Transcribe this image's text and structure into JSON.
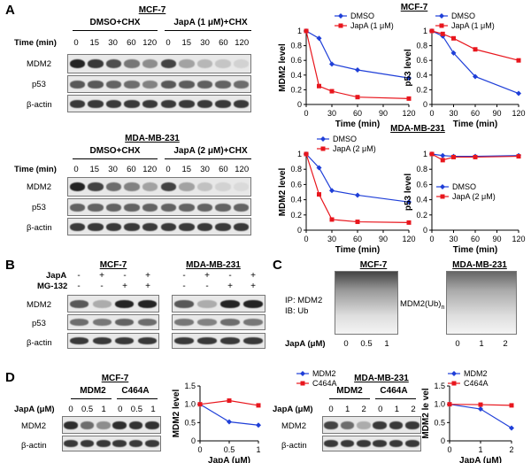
{
  "panel_letters": {
    "A": "A",
    "B": "B",
    "C": "C",
    "D": "D"
  },
  "panel_a": {
    "mcf7_title": "MCF-7",
    "mda_title": "MDA-MB-231",
    "mcf7_group1": "DMSO+CHX",
    "mcf7_group2": "JapA (1 μM)+CHX",
    "mda_group1": "DMSO+CHX",
    "mda_group2": "JapA (2 μM)+CHX",
    "time_label": "Time (min)",
    "time_ticks": [
      "0",
      "15",
      "30",
      "60",
      "120",
      "0",
      "15",
      "30",
      "60",
      "120"
    ],
    "row_labels": [
      "MDM2",
      "p53",
      "β-actin"
    ]
  },
  "panel_b": {
    "mcf7_title": "MCF-7",
    "mda_title": "MDA-MB-231",
    "japa_label": "JapA",
    "mg_label": "MG-132",
    "japa_signs": [
      "-",
      "+",
      "-",
      "+"
    ],
    "mg_signs": [
      "-",
      "-",
      "+",
      "+"
    ],
    "row_labels": [
      "MDM2",
      "p53",
      "β-actin"
    ]
  },
  "panel_c": {
    "mcf7_title": "MCF-7",
    "mda_title": "MDA-MB-231",
    "ip_label": "IP: MDM2",
    "ib_label": "IB: Ub",
    "ub_label": "MDM2(Ub)",
    "ub_sub": "n",
    "japa_label": "JapA (μM)",
    "mcf7_doses": [
      "0",
      "0.5",
      "1"
    ],
    "mda_doses": [
      "0",
      "1",
      "2"
    ]
  },
  "panel_d": {
    "mcf7_title": "MCF-7",
    "mda_title": "MDA-MB-231",
    "group1": "MDM2",
    "group2": "C464A",
    "japa_label": "JapA (μM)",
    "mcf7_doses": [
      "0",
      "0.5",
      "1",
      "0",
      "0.5",
      "1"
    ],
    "mda_doses": [
      "0",
      "1",
      "2",
      "0",
      "1",
      "2"
    ],
    "row_labels": [
      "MDM2",
      "β-actin"
    ]
  },
  "colors": {
    "blue": "#1f3fd8",
    "red": "#e8161d"
  },
  "chart_data": [
    {
      "type": "line",
      "panel": "A",
      "title": "MCF-7",
      "xlabel": "Time (min)",
      "ylabel": "MDM2 level",
      "x": [
        0,
        15,
        30,
        60,
        120
      ],
      "xticks": [
        "0",
        "30",
        "60",
        "90",
        "120"
      ],
      "xlim": [
        0,
        120
      ],
      "yticks": [
        "0",
        "0.2",
        "0.4",
        "0.6",
        "0.8",
        "1"
      ],
      "ylim": [
        0,
        1
      ],
      "legend": "top-right",
      "series": [
        {
          "name": "DMSO",
          "values": [
            1.0,
            0.9,
            0.55,
            0.47,
            0.36
          ],
          "color": "#1f3fd8",
          "marker": "diamond"
        },
        {
          "name": "JapA (1 μM)",
          "values": [
            1.0,
            0.25,
            0.18,
            0.1,
            0.08
          ],
          "color": "#e8161d",
          "marker": "square"
        }
      ]
    },
    {
      "type": "line",
      "panel": "A",
      "title": "MCF-7",
      "xlabel": "Time (min)",
      "ylabel": "p53 level",
      "x": [
        0,
        15,
        30,
        60,
        120
      ],
      "xticks": [
        "0",
        "30",
        "60",
        "90",
        "120"
      ],
      "xlim": [
        0,
        120
      ],
      "yticks": [
        "0",
        "0.2",
        "0.4",
        "0.6",
        "0.8",
        "1"
      ],
      "ylim": [
        0,
        1
      ],
      "legend": "top-right",
      "series": [
        {
          "name": "DMSO",
          "values": [
            1.0,
            0.93,
            0.7,
            0.38,
            0.15
          ],
          "color": "#1f3fd8",
          "marker": "diamond"
        },
        {
          "name": "JapA (1 μM)",
          "values": [
            1.0,
            0.96,
            0.9,
            0.75,
            0.6
          ],
          "color": "#e8161d",
          "marker": "square"
        }
      ]
    },
    {
      "type": "line",
      "panel": "A",
      "title": "MDA-MB-231",
      "xlabel": "Time (min)",
      "ylabel": "MDM2 level",
      "x": [
        0,
        15,
        30,
        60,
        120
      ],
      "xticks": [
        "0",
        "30",
        "60",
        "90",
        "120"
      ],
      "xlim": [
        0,
        120
      ],
      "yticks": [
        "0",
        "0.2",
        "0.4",
        "0.6",
        "0.8",
        "1"
      ],
      "ylim": [
        0,
        1
      ],
      "legend": "top-right",
      "series": [
        {
          "name": "DMSO",
          "values": [
            1.0,
            0.82,
            0.52,
            0.46,
            0.37
          ],
          "color": "#1f3fd8",
          "marker": "diamond"
        },
        {
          "name": "JapA (2 μM)",
          "values": [
            1.0,
            0.47,
            0.14,
            0.11,
            0.1
          ],
          "color": "#e8161d",
          "marker": "square"
        }
      ]
    },
    {
      "type": "line",
      "panel": "A",
      "title": "MDA-MB-231",
      "xlabel": "Time (min)",
      "ylabel": "p53 level",
      "x": [
        0,
        15,
        30,
        60,
        120
      ],
      "xticks": [
        "0",
        "30",
        "60",
        "90",
        "120"
      ],
      "xlim": [
        0,
        120
      ],
      "yticks": [
        "0",
        "0.2",
        "0.4",
        "0.6",
        "0.8",
        "1"
      ],
      "ylim": [
        0,
        1
      ],
      "legend": "bottom-right",
      "series": [
        {
          "name": "DMSO",
          "values": [
            1.0,
            0.98,
            0.97,
            0.97,
            0.98
          ],
          "color": "#1f3fd8",
          "marker": "diamond"
        },
        {
          "name": "JapA (2 μM)",
          "values": [
            1.0,
            0.92,
            0.96,
            0.96,
            0.97
          ],
          "color": "#e8161d",
          "marker": "square"
        }
      ]
    },
    {
      "type": "line",
      "panel": "D",
      "title": "MCF-7",
      "xlabel": "JapA (μM)",
      "ylabel": "MDM2 level",
      "x": [
        0,
        0.5,
        1
      ],
      "xticks": [
        "0",
        "0.5",
        "1"
      ],
      "xlim": [
        0,
        1
      ],
      "yticks": [
        "0",
        "0.5",
        "1.0",
        "1.5"
      ],
      "ylim": [
        0,
        1.5
      ],
      "legend": "top-right",
      "series": [
        {
          "name": "MDM2",
          "values": [
            1.0,
            0.52,
            0.43
          ],
          "color": "#1f3fd8",
          "marker": "diamond"
        },
        {
          "name": "C464A",
          "values": [
            1.0,
            1.1,
            0.97
          ],
          "color": "#e8161d",
          "marker": "square"
        }
      ]
    },
    {
      "type": "line",
      "panel": "D",
      "title": "MDA-MB-231",
      "xlabel": "JapA (μM)",
      "ylabel": "MDM2 le vel",
      "x": [
        0,
        1,
        2
      ],
      "xticks": [
        "0",
        "1",
        "2"
      ],
      "xlim": [
        0,
        2
      ],
      "yticks": [
        "0",
        "0.5",
        "1.0",
        "1.5"
      ],
      "ylim": [
        0,
        1.5
      ],
      "legend": "top-right",
      "series": [
        {
          "name": "MDM2",
          "values": [
            1.0,
            0.87,
            0.35
          ],
          "color": "#1f3fd8",
          "marker": "diamond"
        },
        {
          "name": "C464A",
          "values": [
            1.0,
            0.99,
            0.97
          ],
          "color": "#e8161d",
          "marker": "square"
        }
      ]
    }
  ]
}
